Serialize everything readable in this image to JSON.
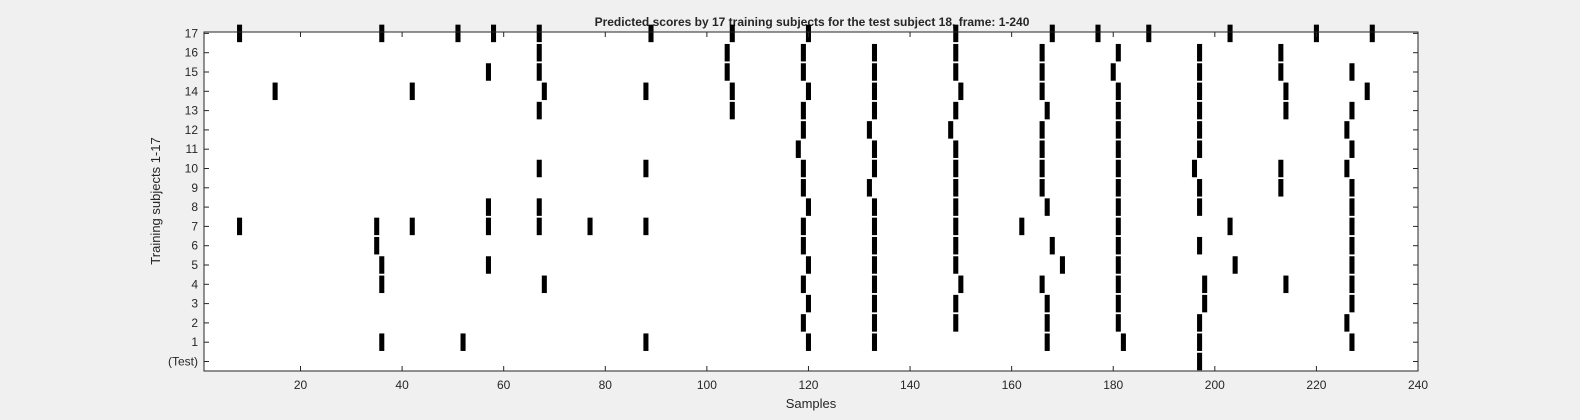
{
  "chart_data": {
    "type": "scatter",
    "title": "Predicted scores by 17 training subjects for the test subject 18, frame: 1-240",
    "xlabel": "Samples",
    "ylabel": "Training subjects 1-17",
    "xlim": [
      1,
      240
    ],
    "xticks": [
      20,
      40,
      60,
      80,
      100,
      120,
      140,
      160,
      180,
      200,
      220,
      240
    ],
    "ylim": [
      0,
      17
    ],
    "yticklabels": [
      "(Test)",
      "1",
      "2",
      "3",
      "4",
      "5",
      "6",
      "7",
      "8",
      "9",
      "10",
      "11",
      "12",
      "13",
      "14",
      "15",
      "16",
      "17"
    ],
    "grid": false,
    "legend": "none",
    "marker_color": "#000000",
    "rows": [
      {
        "row": "(Test)",
        "x": [
          197
        ]
      },
      {
        "row": "1",
        "x": [
          36,
          52,
          88,
          120,
          133,
          167,
          182,
          197,
          227
        ]
      },
      {
        "row": "2",
        "x": [
          119,
          133,
          149,
          167,
          181,
          197,
          226
        ]
      },
      {
        "row": "3",
        "x": [
          120,
          133,
          149,
          167,
          181,
          198,
          227
        ]
      },
      {
        "row": "4",
        "x": [
          36,
          68,
          119,
          133,
          150,
          166,
          181,
          198,
          214,
          227
        ]
      },
      {
        "row": "5",
        "x": [
          36,
          57,
          120,
          133,
          149,
          170,
          181,
          204,
          227
        ]
      },
      {
        "row": "6",
        "x": [
          35,
          119,
          133,
          149,
          168,
          181,
          197,
          227
        ]
      },
      {
        "row": "7",
        "x": [
          8,
          35,
          42,
          57,
          67,
          77,
          88,
          119,
          133,
          149,
          162,
          181,
          203,
          227
        ]
      },
      {
        "row": "8",
        "x": [
          57,
          67,
          120,
          133,
          149,
          167,
          181,
          197,
          227
        ]
      },
      {
        "row": "9",
        "x": [
          119,
          132,
          149,
          166,
          181,
          197,
          213,
          227
        ]
      },
      {
        "row": "10",
        "x": [
          67,
          88,
          119,
          133,
          149,
          166,
          181,
          196,
          213,
          226
        ]
      },
      {
        "row": "11",
        "x": [
          118,
          133,
          149,
          166,
          181,
          197,
          227
        ]
      },
      {
        "row": "12",
        "x": [
          119,
          132,
          148,
          166,
          181,
          197,
          226
        ]
      },
      {
        "row": "13",
        "x": [
          67,
          105,
          119,
          133,
          149,
          167,
          181,
          197,
          214,
          227
        ]
      },
      {
        "row": "14",
        "x": [
          15,
          42,
          68,
          88,
          105,
          120,
          133,
          150,
          166,
          181,
          197,
          214,
          230
        ]
      },
      {
        "row": "15",
        "x": [
          57,
          67,
          104,
          119,
          133,
          149,
          166,
          180,
          197,
          213,
          227
        ]
      },
      {
        "row": "16",
        "x": [
          67,
          104,
          119,
          133,
          149,
          166,
          181,
          197,
          213
        ]
      },
      {
        "row": "17",
        "x": [
          8,
          36,
          51,
          58,
          67,
          89,
          105,
          120,
          149,
          168,
          177,
          187,
          203,
          220,
          231
        ]
      }
    ]
  }
}
